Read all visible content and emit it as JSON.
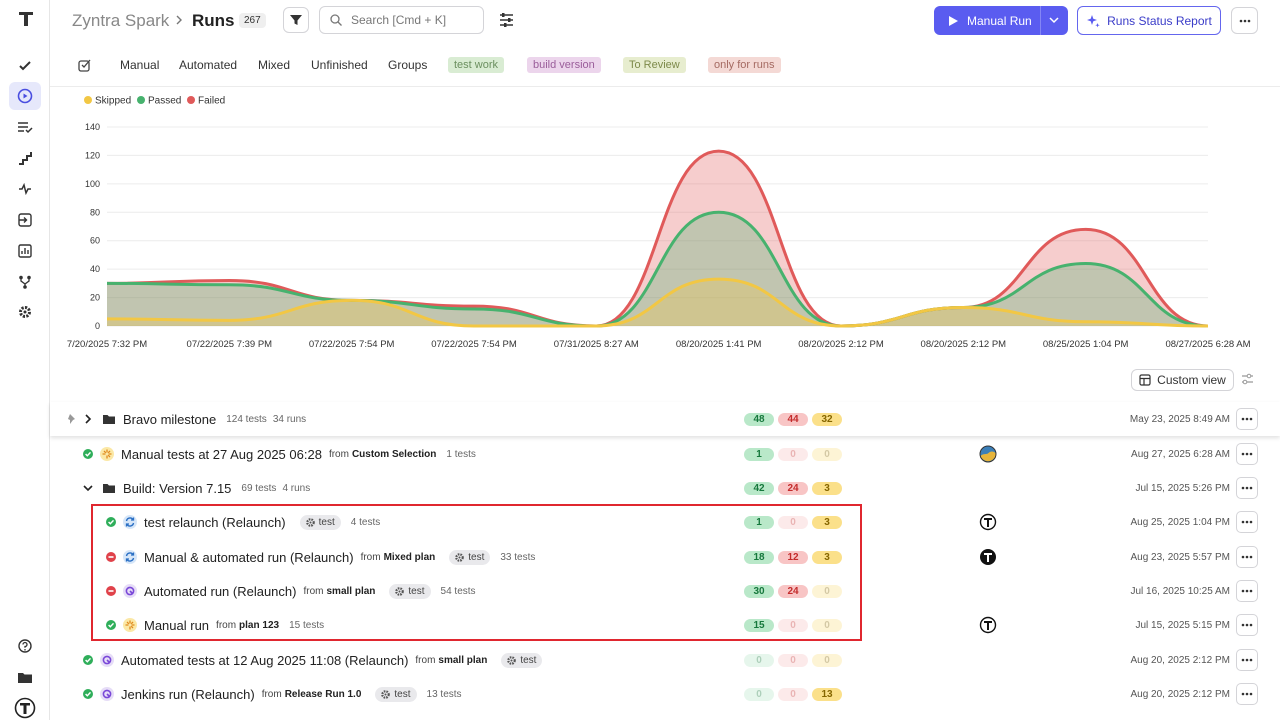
{
  "header": {
    "project": "Zyntra Spark",
    "title": "Runs",
    "count": 267,
    "search_placeholder": "Search [Cmd + K]",
    "primary_button": "Manual Run",
    "report_button": "Runs Status Report"
  },
  "filters": {
    "tabs": [
      "Manual",
      "Automated",
      "Mixed",
      "Unfinished",
      "Groups"
    ],
    "tags": [
      {
        "label": "test work",
        "color": "#d9ecd3",
        "text_color": "#6b8f5f"
      },
      {
        "label": "build version",
        "color": "#ecd5ec",
        "text_color": "#9a5d9a"
      },
      {
        "label": "To Review",
        "color": "#e7edcf",
        "text_color": "#7d8a4a"
      },
      {
        "label": "only for runs",
        "color": "#f4d9d5",
        "text_color": "#a56a62"
      }
    ]
  },
  "chart_data": {
    "type": "area",
    "stacked": true,
    "grid": true,
    "legend": "top-left",
    "x": [
      "7/20/2025 7:32 PM",
      "07/22/2025 7:39 PM",
      "07/22/2025 7:54 PM",
      "07/22/2025 7:54 PM",
      "07/31/2025 8:27 AM",
      "08/20/2025 1:41 PM",
      "08/20/2025 2:12 PM",
      "08/20/2025 2:12 PM",
      "08/25/2025 1:04 PM",
      "08/27/2025 6:28 AM"
    ],
    "series": [
      {
        "name": "Skipped",
        "color": "#f2c744",
        "values": [
          5,
          4,
          18,
          0,
          0,
          33,
          0,
          13,
          3,
          0
        ]
      },
      {
        "name": "Passed",
        "color": "#47b26e",
        "values": [
          25,
          25,
          0,
          12,
          0,
          47,
          0,
          0,
          41,
          0
        ]
      },
      {
        "name": "Failed",
        "color": "#e05a5a",
        "values": [
          0,
          3,
          0,
          2,
          0,
          43,
          0,
          0,
          24,
          0
        ]
      }
    ],
    "ylim": [
      0,
      140
    ],
    "yticks": [
      0,
      20,
      40,
      60,
      80,
      100,
      120,
      140
    ]
  },
  "table": {
    "custom_view": "Custom view",
    "from_label": "from",
    "rows": [
      {
        "level": "group",
        "expanded": false,
        "name": "Bravo milestone",
        "tests": "124 tests",
        "runs": "34 runs",
        "passed": 48,
        "failed": 44,
        "skipped": 32,
        "date": "May 23, 2025 8:49 AM"
      },
      {
        "level": "top",
        "status": "passed",
        "kind": "manual",
        "name": "Manual tests at 27 Aug 2025 06:28",
        "source": "Custom Selection",
        "tests": "1 tests",
        "passed": 1,
        "failed": 0,
        "skipped": 0,
        "date": "Aug 27, 2025 6:28 AM",
        "avatar": "photo"
      },
      {
        "level": "group",
        "expanded": true,
        "name": "Build: Version 7.15",
        "tests": "69 tests",
        "runs": "4 runs",
        "passed": 42,
        "failed": 24,
        "skipped": 3,
        "date": "Jul 15, 2025 5:26 PM"
      },
      {
        "level": "child",
        "status": "passed",
        "kind": "mixed",
        "name": "test relaunch (Relaunch)",
        "tag": "test",
        "tests": "4 tests",
        "passed": 1,
        "failed": 0,
        "skipped": 3,
        "date": "Aug 25, 2025 1:04 PM",
        "avatar": "outline"
      },
      {
        "level": "child",
        "status": "failed",
        "kind": "mixed",
        "name": "Manual & automated run (Relaunch)",
        "source": "Mixed plan",
        "tag": "test",
        "tests": "33 tests",
        "passed": 18,
        "failed": 12,
        "skipped": 3,
        "date": "Aug 23, 2025 5:57 PM",
        "avatar": "solid"
      },
      {
        "level": "child",
        "status": "failed",
        "kind": "automated",
        "name": "Automated run (Relaunch)",
        "source": "small plan",
        "tag": "test",
        "tests": "54 tests",
        "passed": 30,
        "failed": 24,
        "skipped": 0,
        "date": "Jul 16, 2025 10:25 AM"
      },
      {
        "level": "child",
        "status": "passed",
        "kind": "manual",
        "name": "Manual run",
        "source": "plan 123",
        "tests": "15 tests",
        "passed": 15,
        "failed": 0,
        "skipped": 0,
        "date": "Jul 15, 2025 5:15 PM",
        "avatar": "outline"
      },
      {
        "level": "top",
        "status": "passed",
        "kind": "automated",
        "name": "Automated tests at 12 Aug 2025 11:08 (Relaunch)",
        "source": "small plan",
        "tag": "test",
        "passed": 0,
        "failed": 0,
        "skipped": 0,
        "date": "Aug 20, 2025 2:12 PM"
      },
      {
        "level": "top",
        "status": "passed",
        "kind": "automated",
        "name": "Jenkins run (Relaunch)",
        "source": "Release Run 1.0",
        "tag": "test",
        "tests": "13 tests",
        "passed": 0,
        "failed": 0,
        "skipped": 13,
        "date": "Aug 20, 2025 2:12 PM"
      }
    ]
  }
}
